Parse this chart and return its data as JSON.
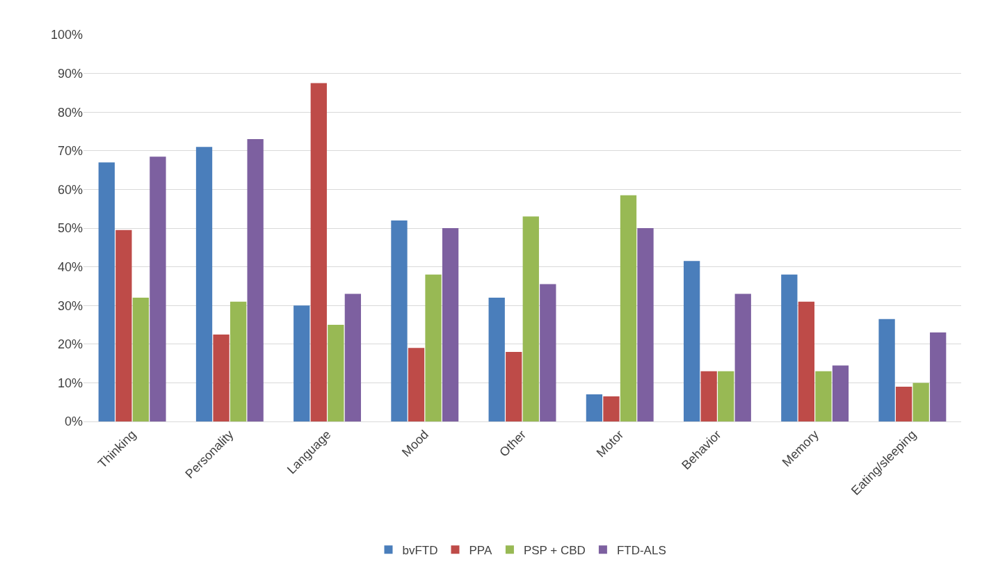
{
  "chart_data": {
    "type": "bar",
    "categories": [
      "Thinking",
      "Personality",
      "Language",
      "Mood",
      "Other",
      "Motor",
      "Behavior",
      "Memory",
      "Eating/sleeping"
    ],
    "series": [
      {
        "name": "bvFTD",
        "color": "#4a7ebb",
        "values": [
          67,
          71,
          30,
          52,
          32,
          7,
          41.5,
          38,
          26.5
        ]
      },
      {
        "name": "PPA",
        "color": "#be4b48",
        "values": [
          49.5,
          22.5,
          87.5,
          19,
          18,
          6.5,
          13,
          31,
          9
        ]
      },
      {
        "name": "PSP + CBD",
        "color": "#98b954",
        "values": [
          32,
          31,
          25,
          38,
          53,
          58.5,
          13,
          13,
          10
        ]
      },
      {
        "name": "FTD-ALS",
        "color": "#7d60a0",
        "values": [
          68.5,
          73,
          33,
          50,
          35.5,
          50,
          33,
          14.5,
          23
        ]
      }
    ],
    "ylim": [
      0,
      100
    ],
    "yticks": [
      {
        "value": 0,
        "label": "0%"
      },
      {
        "value": 10,
        "label": "10%"
      },
      {
        "value": 20,
        "label": "20%"
      },
      {
        "value": 30,
        "label": "30%"
      },
      {
        "value": 40,
        "label": "40%"
      },
      {
        "value": 50,
        "label": "50%"
      },
      {
        "value": 60,
        "label": "60%"
      },
      {
        "value": 70,
        "label": "70%"
      },
      {
        "value": 80,
        "label": "80%"
      },
      {
        "value": 90,
        "label": "90%"
      },
      {
        "value": 100,
        "label": "100%"
      }
    ],
    "grid": "y",
    "legend": "bottom"
  }
}
